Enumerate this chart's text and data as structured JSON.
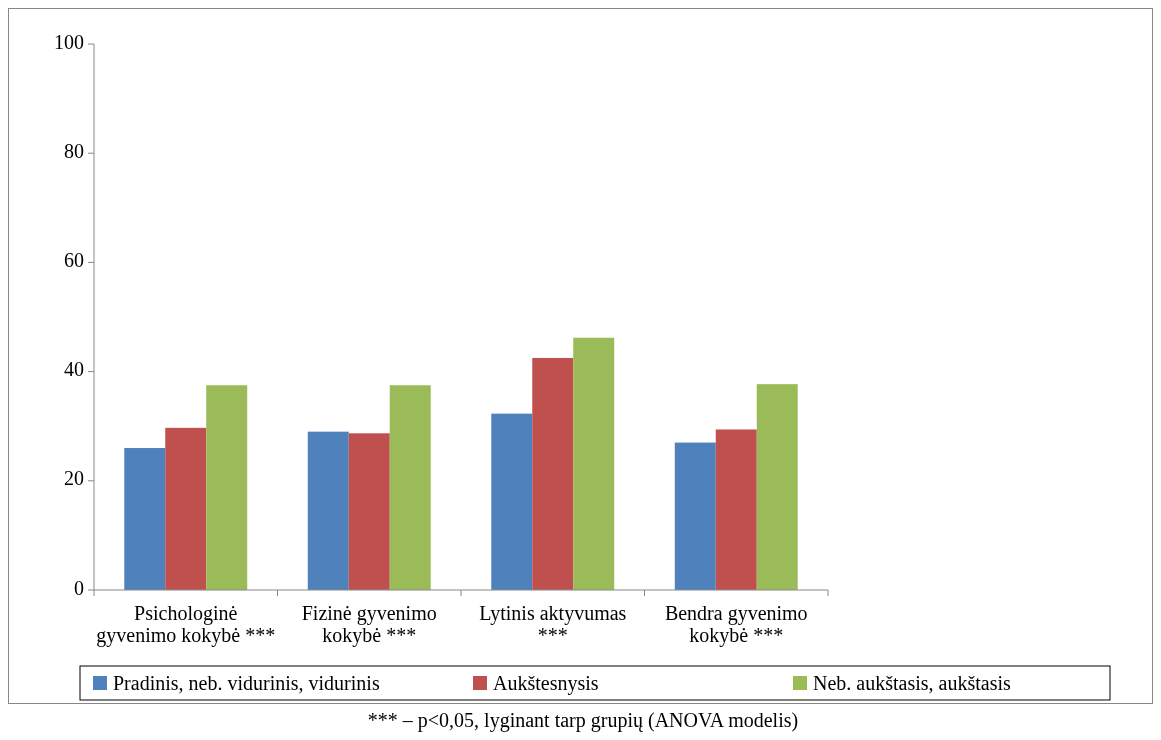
{
  "chart_data": {
    "type": "bar",
    "categories": [
      "Psichologinė gyvenimo kokybė ***",
      "Fizinė gyvenimo kokybė ***",
      "Lytinis aktyvumas ***",
      "Bendra gyvenimo kokybė ***"
    ],
    "series": [
      {
        "name": "Pradinis, neb. vidurinis, vidurinis",
        "color": "#4f81bd",
        "values": [
          26.0,
          29.0,
          32.3,
          27.0
        ]
      },
      {
        "name": "Aukštesnysis",
        "color": "#c0504d",
        "values": [
          29.7,
          28.7,
          42.5,
          29.4
        ]
      },
      {
        "name": "Neb. aukštasis, aukštasis",
        "color": "#9bbb59",
        "values": [
          37.5,
          37.5,
          46.2,
          37.7
        ]
      }
    ],
    "ylim": [
      0,
      100
    ],
    "yticks": [
      0,
      20,
      40,
      60,
      80,
      100
    ],
    "grid": false,
    "legend": "bottom",
    "annotations": [
      "*** – p<0,05, lyginant tarp grupių (ANOVA modelis)"
    ]
  }
}
